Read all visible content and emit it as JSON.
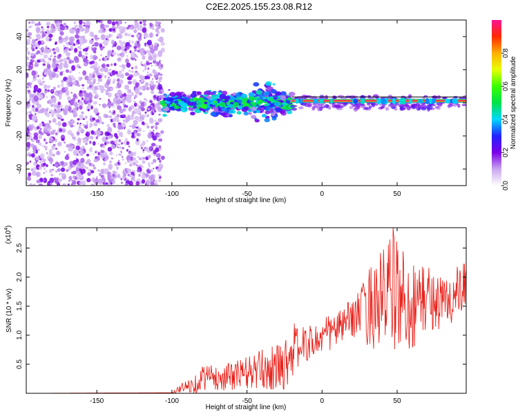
{
  "title": "C2E2.2025.155.23.08.R12",
  "chart_data": [
    {
      "type": "heatmap",
      "xlabel": "Height of straight line (km)",
      "ylabel": "Frequency (Hz)",
      "xlim": [
        -197,
        96
      ],
      "ylim": [
        -50,
        50
      ],
      "xticks": [
        -150,
        -100,
        -50,
        0,
        50
      ],
      "xtick_labels": [
        "-150",
        "-100",
        "-50",
        "0",
        "50"
      ],
      "yticks": [
        -40,
        -20,
        0,
        20,
        40
      ],
      "ytick_labels": [
        "-40",
        "-20",
        "0",
        "20",
        "40"
      ],
      "colorbar": {
        "label": "Normalized spectral amplitude",
        "range": [
          0,
          1
        ],
        "ticks": [
          0.0,
          0.2,
          0.4,
          0.6,
          0.8
        ],
        "tick_labels": [
          "0.0",
          "0.2",
          "0.4",
          "0.6",
          "0.8"
        ],
        "colormap": "rainbow"
      },
      "regions": [
        {
          "x": [
            -197,
            -106
          ],
          "freq": [
            -50,
            50
          ],
          "amplitude": 0.08,
          "pattern": "noise"
        },
        {
          "x": [
            -106,
            -20
          ],
          "freq": [
            -12,
            12
          ],
          "amplitude": 0.35,
          "pattern": "scattered"
        },
        {
          "x": [
            -20,
            96
          ],
          "freq": [
            -2,
            3
          ],
          "amplitude": 0.9,
          "pattern": "band"
        }
      ],
      "grid": false
    },
    {
      "type": "line",
      "xlabel": "Height of straight line (km)",
      "ylabel": "SNR (10 * v/v)",
      "y_multiplier": "(x10",
      "y_exponent": "4",
      "xlim": [
        -197,
        96
      ],
      "ylim": [
        0,
        2.85
      ],
      "xticks": [
        -150,
        -100,
        -50,
        0,
        50
      ],
      "xtick_labels": [
        "-150",
        "-100",
        "-50",
        "0",
        "50"
      ],
      "yticks": [
        0.5,
        1.0,
        1.5,
        2.0,
        2.5
      ],
      "ytick_labels": [
        "0.5",
        "1.0",
        "1.5",
        "2.0",
        "2.5"
      ],
      "color": "#e8221b",
      "series": [
        {
          "x": [
            -197,
            -100,
            -95,
            -85,
            -78,
            -70,
            -60,
            -50,
            -40,
            -30,
            -25,
            -20,
            -15,
            -10,
            -5,
            0,
            5,
            10,
            15,
            20,
            25,
            28,
            30,
            35,
            40,
            45,
            50,
            55,
            60,
            65,
            70,
            75,
            80,
            85,
            90,
            96
          ],
          "values": [
            0.0,
            0.01,
            0.08,
            0.15,
            0.3,
            0.25,
            0.3,
            0.35,
            0.4,
            0.45,
            0.5,
            0.75,
            0.8,
            0.85,
            0.9,
            0.95,
            1.05,
            1.1,
            1.2,
            1.3,
            1.4,
            1.45,
            1.5,
            1.55,
            1.6,
            1.7,
            1.75,
            1.6,
            1.5,
            1.6,
            1.65,
            1.6,
            1.55,
            1.6,
            1.7,
            1.75
          ],
          "noise_amplitude": [
            0.0,
            0.0,
            0.08,
            0.15,
            0.25,
            0.2,
            0.25,
            0.3,
            0.35,
            0.4,
            0.45,
            0.5,
            0.35,
            0.3,
            0.3,
            0.3,
            0.35,
            0.3,
            0.3,
            0.35,
            0.4,
            0.5,
            0.7,
            0.8,
            0.9,
            1.0,
            1.0,
            0.9,
            0.8,
            0.7,
            0.6,
            0.5,
            0.5,
            0.5,
            0.5,
            0.5
          ]
        }
      ],
      "grid": false
    }
  ]
}
